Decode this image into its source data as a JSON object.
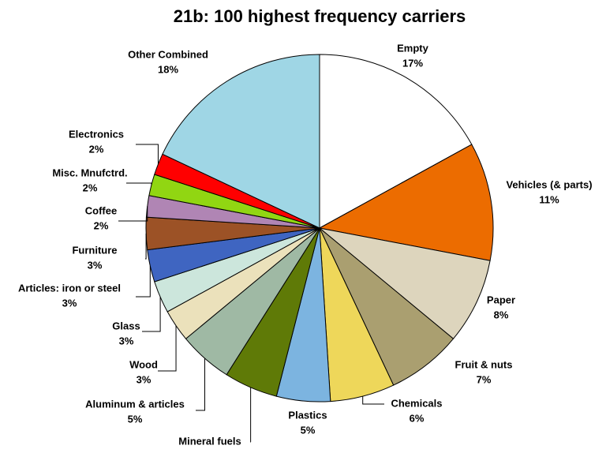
{
  "chart_data": {
    "type": "pie",
    "title": "21b: 100 highest frequency carriers",
    "categories": [
      "Empty",
      "Vehicles (& parts)",
      "Paper",
      "Fruit & nuts",
      "Chemicals",
      "Plastics",
      "Mineral fuels",
      "Aluminum & articles",
      "Wood",
      "Glass",
      "Articles: iron or steel",
      "Furniture",
      "Coffee",
      "Misc. Mnufctrd.",
      "Electronics",
      "Other Combined"
    ],
    "values": [
      17,
      11,
      8,
      7,
      6,
      5,
      5,
      5,
      3,
      3,
      3,
      3,
      2,
      2,
      2,
      18
    ],
    "value_labels": [
      "17%",
      "11%",
      "8%",
      "7%",
      "6%",
      "5%",
      null,
      "5%",
      "3%",
      "3%",
      "3%",
      "3%",
      "2%",
      "2%",
      "2%",
      "18%"
    ],
    "colors": [
      "#ffffff",
      "#ec6c00",
      "#ddd5bd",
      "#aa9f70",
      "#eed75a",
      "#7cb4e0",
      "#5f7a07",
      "#9fb9a4",
      "#ebe1bb",
      "#cce6dc",
      "#3f65c1",
      "#9c5226",
      "#b085b4",
      "#91d612",
      "#ff0000",
      "#9fd6e5"
    ]
  }
}
